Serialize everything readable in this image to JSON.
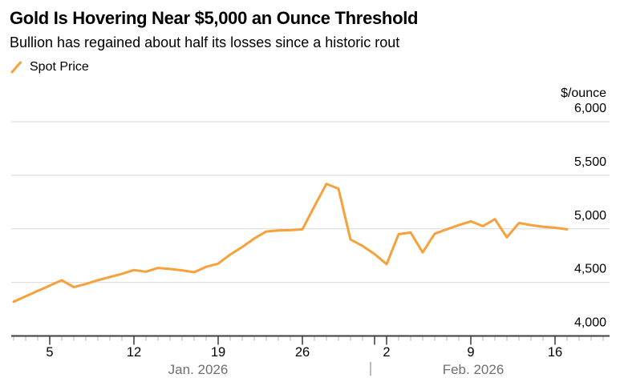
{
  "header": {
    "title": "Gold Is Hovering Near $5,000 an Ounce Threshold",
    "subtitle": "Bullion has regained about half its losses since a historic rout"
  },
  "legend": {
    "items": [
      {
        "label": "Spot Price",
        "marker": "slash-icon"
      }
    ]
  },
  "chart_data": {
    "type": "line",
    "title": "Gold Is Hovering Near $5,000 an Ounce Threshold",
    "subtitle": "Bullion has regained about half its losses since a historic rout",
    "grid": "horizontal",
    "legend_position": "top-left",
    "series": [
      {
        "name": "Spot Price",
        "dates": [
          "2026-01-02",
          "2026-01-03",
          "2026-01-04",
          "2026-01-05",
          "2026-01-06",
          "2026-01-07",
          "2026-01-08",
          "2026-01-09",
          "2026-01-10",
          "2026-01-11",
          "2026-01-12",
          "2026-01-13",
          "2026-01-14",
          "2026-01-15",
          "2026-01-16",
          "2026-01-17",
          "2026-01-18",
          "2026-01-19",
          "2026-01-20",
          "2026-01-21",
          "2026-01-22",
          "2026-01-23",
          "2026-01-24",
          "2026-01-25",
          "2026-01-26",
          "2026-01-27",
          "2026-01-28",
          "2026-01-29",
          "2026-01-30",
          "2026-01-31",
          "2026-02-01",
          "2026-02-02",
          "2026-02-03",
          "2026-02-04",
          "2026-02-05",
          "2026-02-06",
          "2026-02-07",
          "2026-02-08",
          "2026-02-09",
          "2026-02-10",
          "2026-02-11",
          "2026-02-12",
          "2026-02-13",
          "2026-02-14",
          "2026-02-15",
          "2026-02-16",
          "2026-02-17"
        ],
        "values": [
          4320,
          4370,
          4420,
          4470,
          4520,
          4455,
          4485,
          4520,
          4550,
          4580,
          4615,
          4600,
          4635,
          4625,
          4612,
          4595,
          4645,
          4675,
          4760,
          4830,
          4910,
          4975,
          4985,
          4988,
          4995,
          5210,
          5420,
          5375,
          4900,
          4840,
          4765,
          4670,
          4950,
          4965,
          4780,
          4955,
          4995,
          5035,
          5070,
          5025,
          5090,
          4920,
          5055,
          5035,
          5020,
          5010,
          4995
        ]
      }
    ],
    "y_axis": {
      "label": "$/ounce",
      "side": "right",
      "range": [
        4000,
        6000
      ],
      "ticks": [
        4000,
        4500,
        5000,
        5500,
        6000
      ],
      "tick_labels": [
        "4,000",
        "4,500",
        "5,000",
        "5,500",
        "6,000"
      ]
    },
    "x_axis": {
      "tick_labels": [
        "5",
        "12",
        "19",
        "26",
        "2",
        "9",
        "16"
      ],
      "tick_dates": [
        "2026-01-05",
        "2026-01-12",
        "2026-01-19",
        "2026-01-26",
        "2026-02-02",
        "2026-02-09",
        "2026-02-16"
      ],
      "month_labels": [
        "Jan. 2026",
        "Feb. 2026"
      ],
      "month_divider": "|",
      "month_divider_date": "2026-02-01"
    }
  },
  "colors": {
    "accent_line": "#F6A13B",
    "grid": "#D8D8D8",
    "axis": "#3D3D3D",
    "minor_tick": "#B6B6B6",
    "major_tick": "#2E2E2E",
    "text": "#000000",
    "muted": "#6F6F6F",
    "background": "#FFFFFF"
  }
}
